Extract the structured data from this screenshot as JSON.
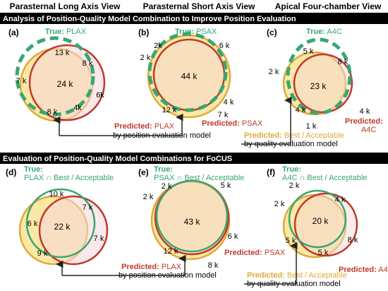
{
  "columns": [
    "Parasternal Long Axis View",
    "Parasternal Short Axis View",
    "Apical Four-chamber View"
  ],
  "section1": {
    "title": "Analysis of Position-Quality Model Combination to Improve Position Evaluation",
    "panels": [
      {
        "letter": "(a)",
        "true_prefix": "True:",
        "true_label": "PLAX",
        "center": "24 k",
        "labels": [
          "13 k",
          "8 k",
          "7 k",
          "6k",
          "4k",
          "8 k"
        ]
      },
      {
        "letter": "(b)",
        "true_prefix": "True:",
        "true_label": "PSAX",
        "center": "44 k",
        "labels": [
          "2k",
          "6 k",
          "2 k",
          "4 k",
          "7 k",
          "12 k"
        ]
      },
      {
        "letter": "(c)",
        "true_prefix": "True:",
        "true_label": "A4C",
        "center": "23 k",
        "labels": [
          "5 k",
          "8 k",
          "2 k",
          "4 k",
          "1 k",
          "4 k"
        ]
      }
    ],
    "pred_a_prefix": "Predicted:",
    "pred_a_label": "PLAX",
    "pred_b_prefix": "Predicted:",
    "pred_b_label": "PSAX",
    "pred_c_prefix": "Predicted:",
    "pred_c_label": "A4C",
    "pred_best_prefix": "Predicted:",
    "pred_best_label": "Best / Acceptable",
    "by_position": "by position evaluation model",
    "by_quality": "by quality evaluation model"
  },
  "section2": {
    "title": "Evaluation of Position-Quality Model Combinations for FoCUS",
    "panels": [
      {
        "letter": "(d)",
        "true_prefix": "True:",
        "true_label": "PLAX ∩ Best / Acceptable",
        "center": "22 k",
        "labels": [
          "10 k",
          "7 k",
          "6 k",
          "7 k",
          "9 k"
        ]
      },
      {
        "letter": "(e)",
        "true_prefix": "True:",
        "true_label": "PSAX ∩ Best / Acceptable",
        "center": "43 k",
        "labels": [
          "2 k",
          "5 k",
          "2 k",
          "6 k",
          "12 k",
          "8 k"
        ]
      },
      {
        "letter": "(f)",
        "true_prefix": "True:",
        "true_label": "A4C ∩ Best / Acceptable",
        "center": "20 k",
        "labels": [
          "2 k",
          "4 k",
          "2 k",
          "8 k",
          "5 k",
          "5 k"
        ]
      }
    ],
    "pred_plax_prefix": "Predicted:",
    "pred_plax_label": "PLAX",
    "pred_psax_prefix": "Predicted:",
    "pred_psax_label": "PSAX",
    "pred_a4c_prefix": "Predicted:",
    "pred_a4c_label": "A4C",
    "pred_best_prefix": "Predicted:",
    "pred_best_label": "Best / Acceptable",
    "by_position": "by position evaluation model",
    "by_quality": "by quality evaluation model"
  },
  "colors": {
    "true_green": "#3aa66f",
    "pred_red": "#c0392b",
    "quality_gold": "#e0a93a",
    "fill_yellow": "#fbe8a6",
    "fill_pink": "#f6d6d8",
    "header_bg": "#000000",
    "header_text": "#ffffff"
  }
}
